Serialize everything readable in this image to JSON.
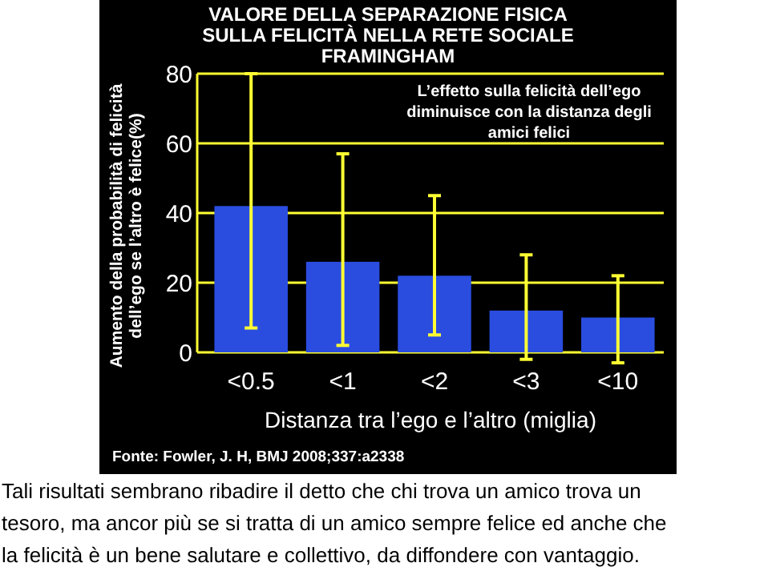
{
  "chart_data": {
    "type": "bar",
    "title": "VALORE DELLA SEPARAZIONE FISICA SULLA FELICITÀ NELLA RETE SOCIALE FRAMINGHAM",
    "xlabel": "Distanza tra l’ego e l’altro (miglia)",
    "ylabel": "Aumento della probabilità di felicità dell’ego se l’altro è felice(%)",
    "categories": [
      "<0.5",
      "<1",
      "<2",
      "<3",
      "<10"
    ],
    "values": [
      42,
      26,
      22,
      12,
      10
    ],
    "color": "#2a4de0",
    "errors": [
      [
        7,
        80
      ],
      [
        2,
        57
      ],
      [
        5,
        45
      ],
      [
        -2,
        28
      ],
      [
        -3,
        22
      ]
    ],
    "ylim": [
      0,
      80
    ],
    "yticks": [
      0,
      20,
      40,
      60,
      80
    ],
    "grid": "y",
    "annotations": [
      "L’effetto sulla felicità dell’ego diminuisce con la distanza degli amici felici",
      "Fonte: Fowler, J. H, BMJ 2008;337:a2338",
      "Tali risultati sembrano ribadire il detto che chi trova un amico trova un tesoro, ma ancor più se si tratta di un amico sempre felice ed anche che la felicità è un bene salutare e collettivo, da diffondere con vantaggio."
    ]
  }
}
